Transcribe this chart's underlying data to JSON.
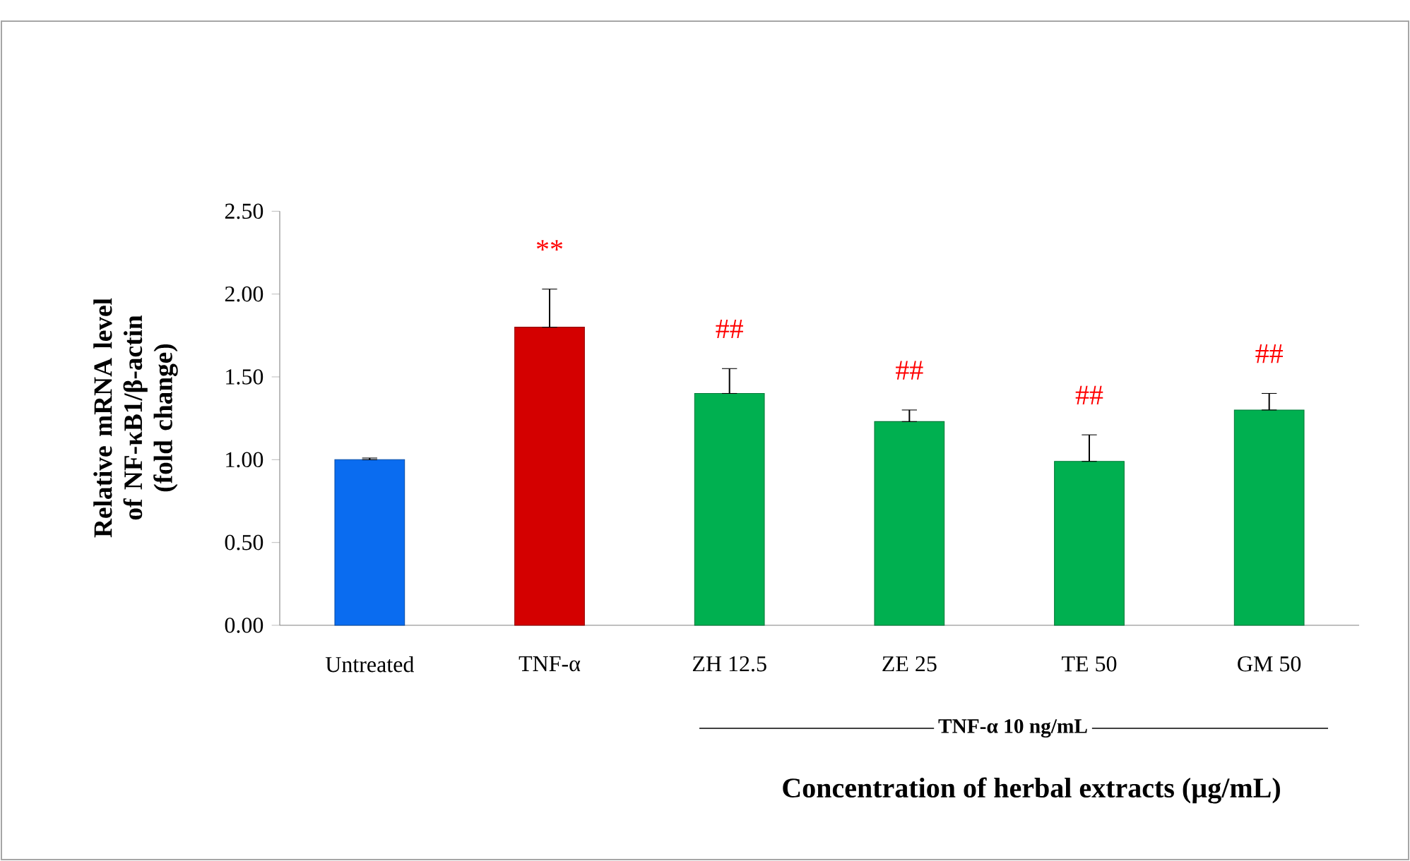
{
  "chart_data": {
    "type": "bar",
    "xlabel": "Concentration  of herbal  extracts (µg/mL)",
    "ylabel": "Relative mRNA level of NF-κB1/β-actin (fold change)",
    "categories": [
      "Untreated",
      "TNF-α",
      "ZH 12.5",
      "ZE 25",
      "TE 50",
      "GM 50"
    ],
    "values": [
      1.0,
      1.8,
      1.4,
      1.23,
      0.99,
      1.3
    ],
    "errors": [
      [
        1.0,
        1.01
      ],
      [
        1.8,
        2.03
      ],
      [
        1.4,
        1.55
      ],
      [
        1.23,
        1.3
      ],
      [
        0.99,
        1.15
      ],
      [
        1.3,
        1.4
      ]
    ],
    "colors": [
      "#0a6cf0",
      "#d40000",
      "#00b050",
      "#00b050",
      "#00b050",
      "#00b050"
    ],
    "ylim": [
      0,
      2.5
    ],
    "yticks": [
      {
        "value": 0,
        "label": "0.00"
      },
      {
        "value": 0.5,
        "label": "0.50"
      },
      {
        "value": 1,
        "label": "1.00"
      },
      {
        "value": 1.5,
        "label": "1.50"
      },
      {
        "value": 2,
        "label": "2.00"
      },
      {
        "value": 2.5,
        "label": "2.50"
      }
    ],
    "grid": false,
    "annotations": [
      "**",
      "##",
      "##",
      "##",
      "##",
      {
        "text": "TNF-α 10 ng/mL"
      }
    ]
  }
}
